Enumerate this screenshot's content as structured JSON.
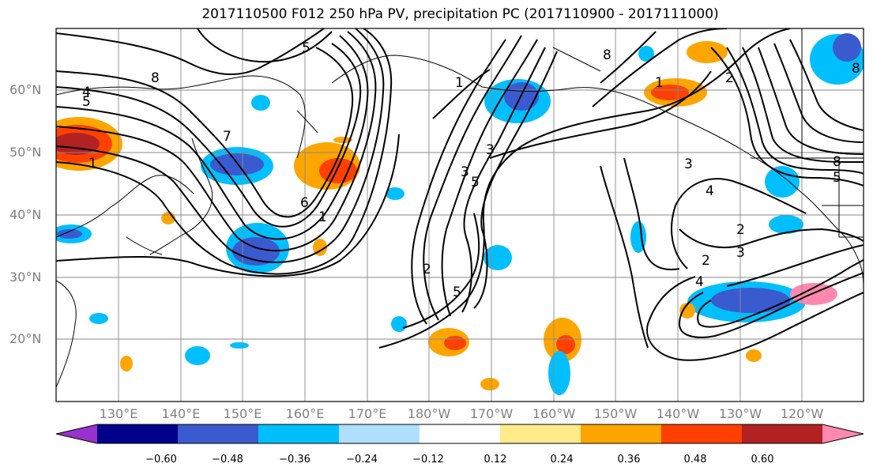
{
  "title": "2017110500 F012 250 hPa PV, precipitation PC (2017110900 - 2017111000)",
  "lat_labels": [
    "60°N",
    "50°N",
    "40°N",
    "30°N",
    "20°N"
  ],
  "lon_labels": [
    "130°E",
    "140°E",
    "150°E",
    "160°E",
    "170°E",
    "180°W",
    "170°W",
    "160°W",
    "150°W",
    "140°W",
    "130°W",
    "120°W"
  ],
  "colorbar": {
    "colors": [
      "#9932cc",
      "#00008b",
      "#3a5bd0",
      "#00bfff",
      "#afdfff",
      "#ffffff",
      "#ffeb8a",
      "#ffa500",
      "#ff4000",
      "#b22222",
      "#ff88b0"
    ],
    "tick_labels": [
      "−0.60",
      "−0.48",
      "−0.36",
      "−0.24",
      "−0.12",
      "0.12",
      "0.24",
      "0.36",
      "0.48",
      "0.60"
    ]
  },
  "pv_contour_labels": [
    "1",
    "2",
    "3",
    "4",
    "5",
    "6",
    "7",
    "8"
  ]
}
